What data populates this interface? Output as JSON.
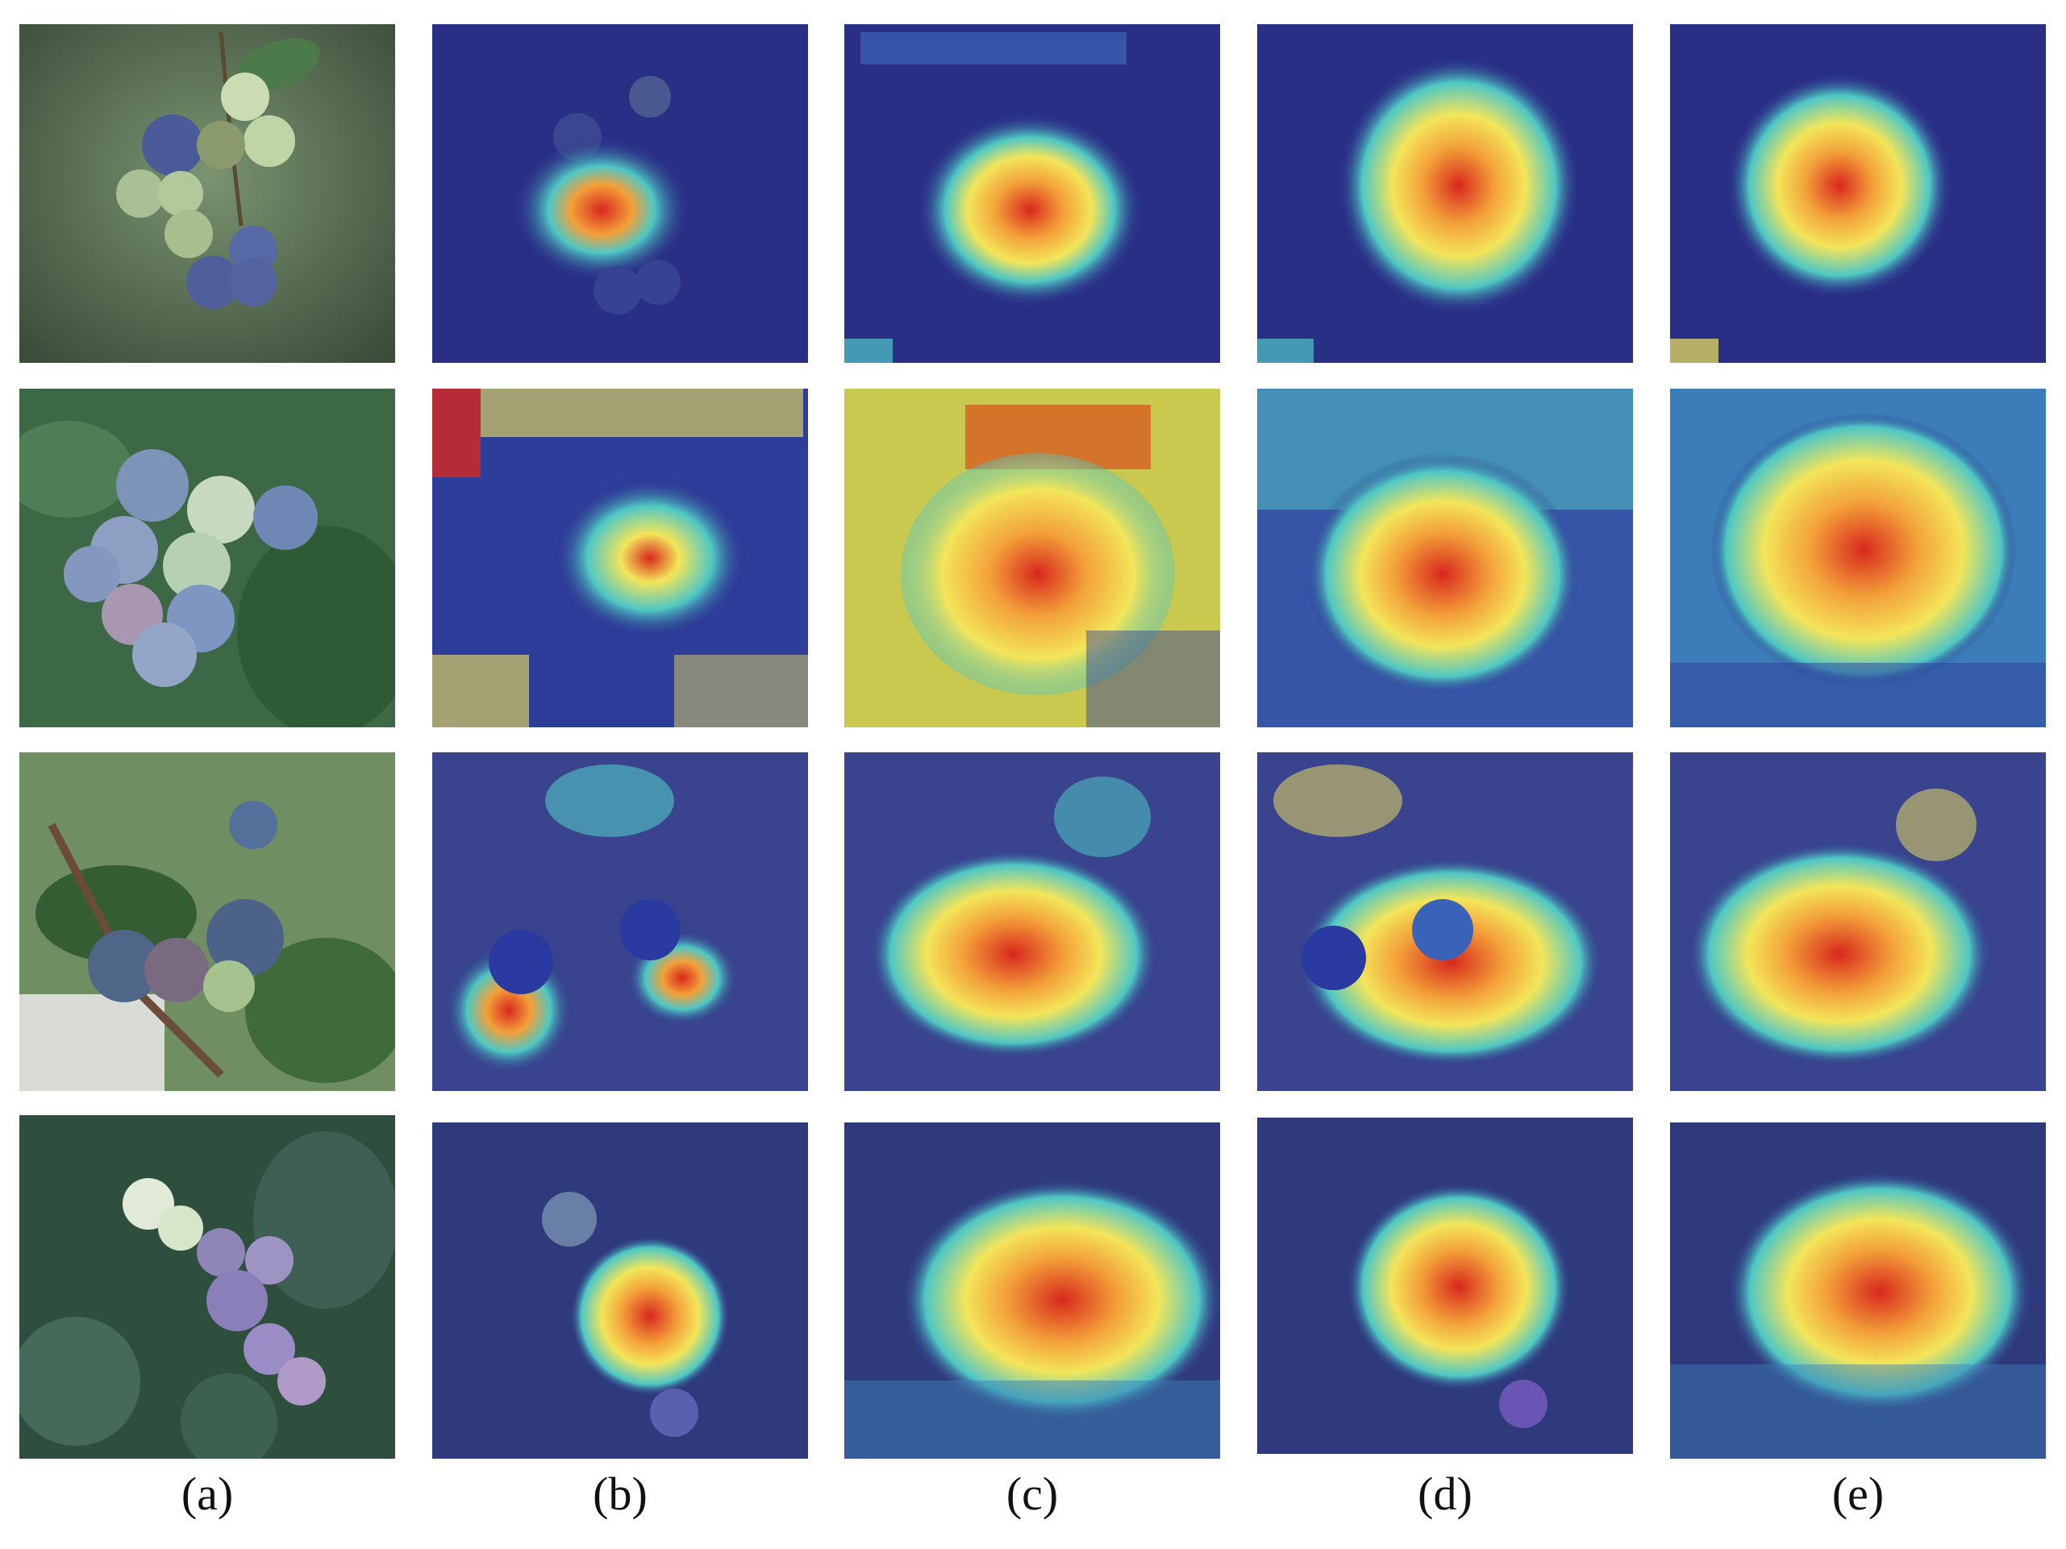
{
  "figure": {
    "rows": [
      {
        "id": "row-1",
        "subject": "blueberry cluster"
      },
      {
        "id": "row-2",
        "subject": "blueberry cluster"
      },
      {
        "id": "row-3",
        "subject": "blueberry cluster"
      },
      {
        "id": "row-4",
        "subject": "blueberry cluster"
      }
    ],
    "columns": [
      {
        "id": "a",
        "caption": "(a)",
        "kind": "original-photo"
      },
      {
        "id": "b",
        "caption": "(b)",
        "kind": "attention-heatmap"
      },
      {
        "id": "c",
        "caption": "(c)",
        "kind": "attention-heatmap"
      },
      {
        "id": "d",
        "caption": "(d)",
        "kind": "attention-heatmap"
      },
      {
        "id": "e",
        "caption": "(e)",
        "kind": "attention-heatmap"
      }
    ]
  },
  "colors": {
    "background": "#ffffff",
    "heat_low": "#2a2f86",
    "heat_mid": "#4fc7c4",
    "heat_warm": "#f3e55a",
    "heat_high": "#d8281d",
    "berry_blue": "#4e5f98",
    "berry_green": "#bcd3a7",
    "leaf_green": "#3d6845"
  }
}
